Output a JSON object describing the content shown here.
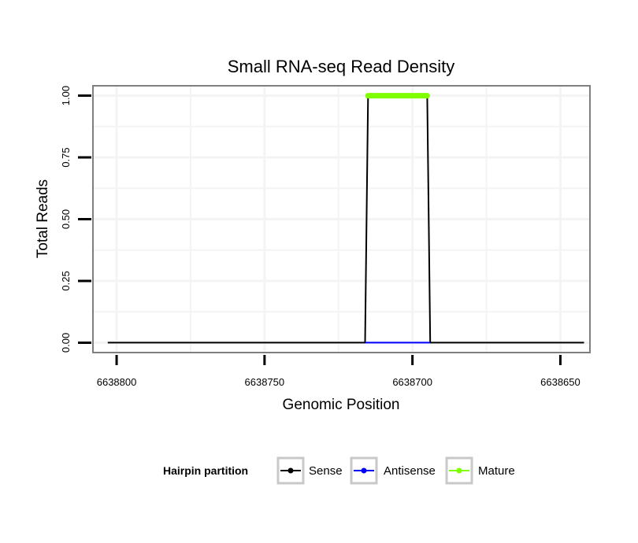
{
  "chart_data": {
    "type": "line",
    "title": "Small RNA-seq Read Density",
    "xlabel": "Genomic Position",
    "ylabel": "Total Reads",
    "x_reversed": true,
    "xlim": [
      6638808,
      6638640
    ],
    "ylim": [
      -0.04,
      1.04
    ],
    "x_ticks": [
      6638800,
      6638750,
      6638700,
      6638650
    ],
    "x_tick_labels": [
      "6638800",
      "6638750",
      "6638700",
      "6638650"
    ],
    "y_ticks": [
      0,
      0.25,
      0.5,
      0.75,
      1.0
    ],
    "y_tick_labels": [
      "0.00",
      "0.25",
      "0.50",
      "0.75",
      "1.00"
    ],
    "grid": true,
    "legend": {
      "title": "Hairpin partition",
      "position": "bottom",
      "entries": [
        {
          "label": "Sense",
          "color": "#000000"
        },
        {
          "label": "Antisense",
          "color": "#0000ff"
        },
        {
          "label": "Mature",
          "color": "#7fff00"
        }
      ]
    },
    "series": [
      {
        "name": "Sense",
        "color": "#000000",
        "x": [
          6638803,
          6638716,
          6638715,
          6638695,
          6638694,
          6638642
        ],
        "y": [
          0,
          0,
          1,
          1,
          0,
          0
        ]
      },
      {
        "name": "Antisense",
        "color": "#0000ff",
        "x": [
          6638716,
          6638694
        ],
        "y": [
          0,
          0
        ]
      },
      {
        "name": "Mature",
        "color": "#7fff00",
        "x": [
          6638715,
          6638695
        ],
        "y": [
          1,
          1
        ]
      }
    ]
  }
}
